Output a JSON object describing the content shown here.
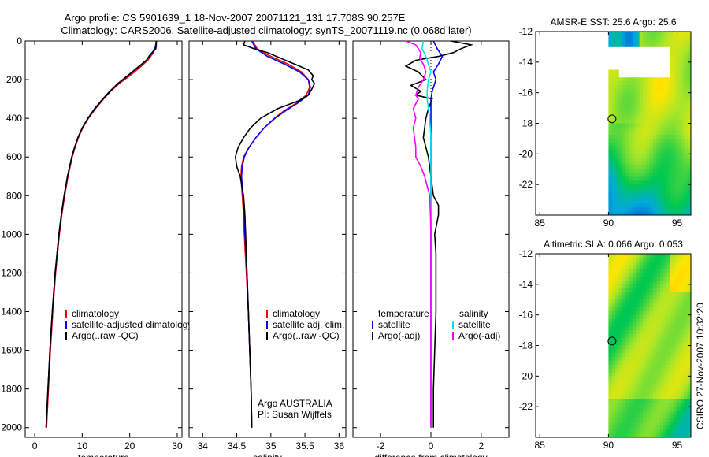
{
  "header": {
    "line1": "Argo profile: CS 5901639_1 18-Nov-2007 20071121_131 17.708S 90.257E",
    "line2": "Climatology: CARS2006. Satellite-adjusted climatology: synTS_20071119.nc (0.068d later)"
  },
  "side_credit": "CSIRO 27-Nov-2007 10:32:20",
  "colors": {
    "clim": "#ff0000",
    "sat": "#0000ff",
    "argo": "#000000",
    "sal_sat": "#00e5ee",
    "sal_argo": "#ff00ff",
    "marker": "#000000"
  },
  "chart_data": [
    {
      "type": "line",
      "panel": "temperature",
      "xlabel": "temperature",
      "ylabel": "",
      "invert_y": true,
      "xlim": [
        -2,
        31
      ],
      "ylim": [
        0,
        2050
      ],
      "xticks": [
        0,
        10,
        20,
        30
      ],
      "yticks": [
        0,
        200,
        400,
        600,
        800,
        1000,
        1200,
        1400,
        1600,
        1800,
        2000
      ],
      "legend": [
        "climatology",
        "satellite-adjusted climatology",
        "Argo(..raw -QC)"
      ],
      "series": [
        {
          "name": "climatology",
          "color": "clim",
          "depth": [
            0,
            30,
            60,
            100,
            140,
            180,
            220,
            260,
            300,
            350,
            400,
            450,
            500,
            550,
            600,
            700,
            800,
            900,
            1000,
            1100,
            1200,
            1400,
            1600,
            1800,
            2000
          ],
          "values": [
            25.6,
            25.5,
            25.0,
            23.8,
            22.0,
            20.0,
            17.8,
            16.0,
            14.5,
            12.8,
            11.3,
            10.1,
            9.2,
            8.5,
            7.9,
            7.0,
            6.3,
            5.7,
            5.2,
            4.8,
            4.4,
            3.8,
            3.3,
            2.9,
            2.5
          ]
        },
        {
          "name": "satellite-adjusted climatology",
          "color": "sat",
          "depth": [
            0,
            30,
            60,
            100,
            140,
            180,
            220,
            260,
            300,
            350,
            400,
            450,
            500,
            550,
            600,
            700,
            800,
            900,
            1000,
            1100,
            1200,
            1400,
            1600,
            1800,
            2000
          ],
          "values": [
            25.6,
            25.4,
            24.8,
            23.5,
            21.6,
            19.6,
            17.5,
            15.8,
            14.3,
            12.6,
            11.2,
            10.0,
            9.1,
            8.4,
            7.8,
            6.9,
            6.2,
            5.6,
            5.1,
            4.7,
            4.3,
            3.7,
            3.2,
            2.8,
            2.4
          ]
        },
        {
          "name": "Argo(..raw -QC)",
          "color": "argo",
          "depth": [
            0,
            20,
            40,
            70,
            100,
            140,
            180,
            220,
            260,
            300,
            350,
            400,
            450,
            500,
            550,
            600,
            700,
            800,
            900,
            1000,
            1200,
            1400,
            1600,
            1800,
            2000
          ],
          "values": [
            25.6,
            25.6,
            25.5,
            24.3,
            23.5,
            21.5,
            19.5,
            17.5,
            15.9,
            14.4,
            12.7,
            11.2,
            10.0,
            9.1,
            8.4,
            7.8,
            6.9,
            6.2,
            5.6,
            5.1,
            4.3,
            3.7,
            3.2,
            2.8,
            2.4
          ]
        }
      ]
    },
    {
      "type": "line",
      "panel": "salinity",
      "xlabel": "salinity",
      "invert_y": true,
      "xlim": [
        33.8,
        36.1
      ],
      "ylim": [
        0,
        2050
      ],
      "xticks": [
        34,
        34.5,
        35,
        35.5,
        36
      ],
      "legend": [
        "climatology",
        "satellite adj. clim.",
        "Argo(..raw -QC)"
      ],
      "annotation": [
        "Argo AUSTRALIA",
        "PI: Susan Wijffels"
      ],
      "series": [
        {
          "name": "climatology",
          "color": "clim",
          "depth": [
            0,
            40,
            80,
            120,
            160,
            200,
            240,
            280,
            320,
            360,
            400,
            450,
            500,
            550,
            600,
            650,
            700,
            800,
            900,
            1000,
            1200,
            1400,
            1600,
            1800,
            2000
          ],
          "values": [
            34.73,
            34.8,
            35.0,
            35.25,
            35.45,
            35.55,
            35.57,
            35.52,
            35.38,
            35.2,
            35.05,
            34.9,
            34.78,
            34.68,
            34.6,
            34.57,
            34.56,
            34.58,
            34.6,
            34.61,
            34.64,
            34.67,
            34.69,
            34.71,
            34.72
          ]
        },
        {
          "name": "satellite adj. clim.",
          "color": "sat",
          "depth": [
            0,
            40,
            80,
            120,
            160,
            200,
            240,
            280,
            320,
            360,
            400,
            450,
            500,
            550,
            600,
            650,
            700,
            800,
            900,
            1000,
            1200,
            1400,
            1600,
            1800,
            2000
          ],
          "values": [
            34.72,
            34.78,
            34.95,
            35.2,
            35.42,
            35.55,
            35.58,
            35.55,
            35.4,
            35.22,
            35.06,
            34.9,
            34.78,
            34.68,
            34.61,
            34.58,
            34.57,
            34.59,
            34.61,
            34.62,
            34.65,
            34.67,
            34.69,
            34.71,
            34.72
          ]
        },
        {
          "name": "Argo(..raw -QC)",
          "color": "argo",
          "depth": [
            0,
            20,
            40,
            60,
            90,
            120,
            150,
            180,
            200,
            220,
            250,
            280,
            310,
            350,
            400,
            450,
            500,
            550,
            600,
            650,
            700,
            800,
            900,
            1000,
            1200,
            1400,
            1600,
            1800,
            2000
          ],
          "values": [
            34.62,
            34.6,
            34.75,
            34.95,
            35.15,
            35.35,
            35.55,
            35.62,
            35.6,
            35.64,
            35.6,
            35.55,
            35.4,
            35.1,
            34.85,
            34.7,
            34.6,
            34.52,
            34.48,
            34.5,
            34.55,
            34.6,
            34.62,
            34.63,
            34.65,
            34.67,
            34.69,
            34.71,
            34.72
          ]
        }
      ]
    },
    {
      "type": "line",
      "panel": "difference",
      "xlabel": "difference from climatology",
      "invert_y": true,
      "xlim": [
        -3.1,
        3.1
      ],
      "ylim": [
        0,
        2050
      ],
      "xticks": [
        -2,
        0,
        2
      ],
      "legend_headers": [
        "temperature",
        "salinity"
      ],
      "legend": [
        "satellite",
        "Argo(-adj)",
        "satellite",
        "Argo(-adj)"
      ],
      "series": [
        {
          "name": "temperature satellite",
          "color": "sat",
          "depth": [
            0,
            40,
            80,
            120,
            160,
            200,
            260,
            300,
            400,
            600,
            800,
            1000,
            1200,
            1600,
            2000
          ],
          "values": [
            0.1,
            0.25,
            0.45,
            0.3,
            0.1,
            0.2,
            0.05,
            0.0,
            0.0,
            0.0,
            0.0,
            0.0,
            0.0,
            0.0,
            0.0
          ]
        },
        {
          "name": "temperature Argo(-adj)",
          "color": "argo",
          "depth": [
            0,
            20,
            40,
            60,
            80,
            100,
            130,
            160,
            200,
            230,
            260,
            280,
            300,
            350,
            400,
            500,
            600,
            700,
            800,
            850,
            900,
            1000,
            1100,
            1200,
            1400,
            1600,
            1800,
            2000
          ],
          "values": [
            0.8,
            1.6,
            1.2,
            0.9,
            0.3,
            -0.6,
            -1.0,
            -0.5,
            -0.2,
            -0.8,
            -0.4,
            -0.6,
            0.05,
            -0.1,
            -0.2,
            -0.3,
            -0.1,
            0.0,
            0.1,
            0.3,
            0.3,
            0.15,
            0.2,
            0.2,
            0.2,
            0.15,
            0.1,
            0.1
          ]
        },
        {
          "name": "salinity satellite",
          "color": "sal_sat",
          "depth": [
            0,
            40,
            80,
            120,
            160,
            200,
            260,
            300,
            400,
            500,
            600,
            800,
            1000,
            1500,
            2000
          ],
          "values": [
            -0.3,
            -0.35,
            -0.2,
            -0.1,
            0.0,
            -0.1,
            -0.15,
            -0.15,
            -0.05,
            0.0,
            0.0,
            0.0,
            0.0,
            0.0,
            0.0
          ]
        },
        {
          "name": "salinity Argo(-adj)",
          "color": "sal_argo",
          "depth": [
            0,
            20,
            40,
            60,
            90,
            120,
            160,
            200,
            240,
            280,
            300,
            350,
            400,
            450,
            500,
            550,
            600,
            650,
            700,
            800,
            900,
            1000,
            1500,
            2000
          ],
          "values": [
            -1.0,
            -0.6,
            -0.5,
            -0.4,
            -0.45,
            -0.3,
            -0.2,
            -0.3,
            -0.5,
            -0.6,
            -0.5,
            -0.7,
            -0.6,
            -0.7,
            -0.65,
            -0.6,
            -0.6,
            -0.4,
            -0.25,
            -0.05,
            -0.02,
            0.0,
            0.0,
            0.0
          ]
        }
      ]
    },
    {
      "type": "heatmap",
      "panel": "sst_map",
      "title": "AMSR-E SST: 25.6 Argo: 25.6",
      "xlim": [
        84.7,
        96
      ],
      "ylim": [
        -24,
        -12
      ],
      "xticks": [
        85,
        90,
        95
      ],
      "yticks": [
        -12,
        -14,
        -16,
        -18,
        -20,
        -22
      ],
      "marker": {
        "lon": 90.257,
        "lat": -17.708
      }
    },
    {
      "type": "heatmap",
      "panel": "sla_map",
      "title": "Altimetric SLA: 0.066 Argo: 0.053",
      "xlim": [
        84.7,
        96
      ],
      "ylim": [
        -24,
        -12
      ],
      "xticks": [
        85,
        90,
        95
      ],
      "yticks": [
        -12,
        -14,
        -16,
        -18,
        -20,
        -22
      ],
      "marker": {
        "lon": 90.257,
        "lat": -17.708
      }
    }
  ]
}
